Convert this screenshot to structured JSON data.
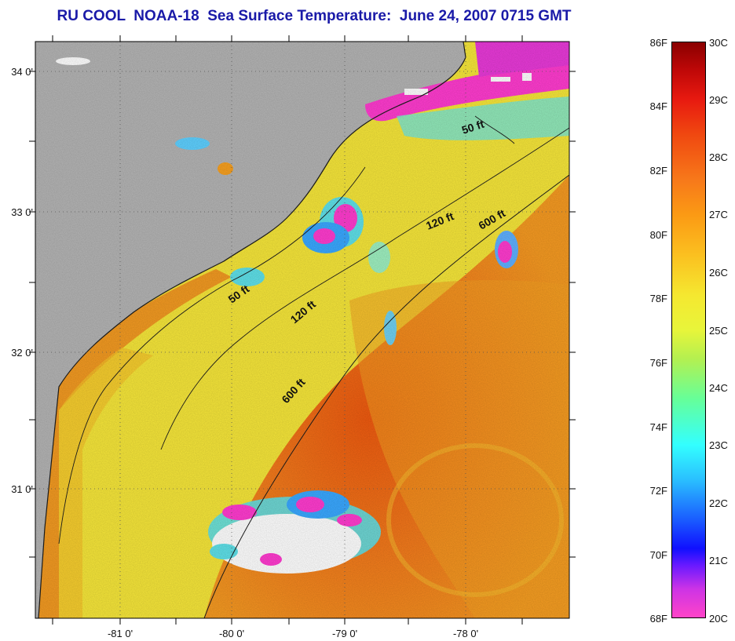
{
  "title": "RU COOL  NOAA-18  Sea Surface Temperature:  June 24, 2007 0715 GMT",
  "axes": {
    "latitude_labels": [
      "34 0'",
      "33 0'",
      "32 0'",
      "31 0'"
    ],
    "longitude_labels": [
      "-81 0'",
      "-80 0'",
      "-79 0'",
      "-78 0'"
    ]
  },
  "contours": {
    "depth_50": "50 ft",
    "depth_120": "120 ft",
    "depth_600": "600 ft"
  },
  "colorbar": {
    "fahrenheit": [
      "86F",
      "84F",
      "82F",
      "80F",
      "78F",
      "76F",
      "74F",
      "72F",
      "70F",
      "68F"
    ],
    "celsius": [
      "30C",
      "29C",
      "28C",
      "27C",
      "26C",
      "25C",
      "24C",
      "23C",
      "22C",
      "21C",
      "20C"
    ]
  },
  "colors": {
    "land": "#b4b4b4",
    "title": "#1a1aa8",
    "cloud": "#ffffff",
    "warm": "#f06a1a",
    "shelf": "#f6e63a",
    "cool": "#ff3ccf"
  }
}
